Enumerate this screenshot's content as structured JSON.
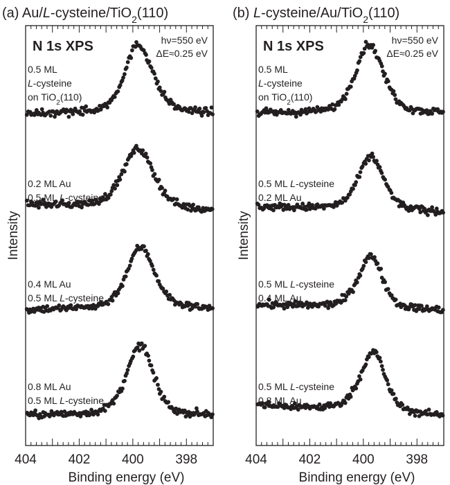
{
  "chart_data": [
    {
      "type": "scatter",
      "title_parts": [
        "(a) Au/",
        "L",
        "-cysteine/TiO",
        "2",
        "(110)"
      ],
      "heading": "N 1s XPS",
      "photon_info": [
        "hν=550 eV",
        "ΔE≈0.25 eV"
      ],
      "xlabel": "Binding energy (eV)",
      "ylabel": "Intensity",
      "x_ticks": [
        "404",
        "402",
        "400",
        "398"
      ],
      "xlim": [
        404,
        397
      ],
      "x_reversed": true,
      "series": [
        {
          "label_lines": [
            [
              {
                "t": "0.5 ML",
                "i": false
              }
            ],
            [
              {
                "t": "L",
                "i": true
              },
              {
                "t": "-cysteine",
                "i": false
              }
            ],
            [
              {
                "t": "on TiO",
                "i": false
              },
              {
                "t": "2",
                "i": false,
                "sub": true
              },
              {
                "t": "(110)",
                "i": false
              }
            ]
          ],
          "peak_x": 399.8,
          "base_left": 0.26,
          "base_right": 0.26,
          "peak_height": 1.88,
          "width_left": 0.6,
          "width_right": 0.65,
          "offset": 7.55
        },
        {
          "label_lines": [
            [
              {
                "t": "0.2 ML Au",
                "i": false
              }
            ],
            [
              {
                "t": "0.5 ML ",
                "i": false
              },
              {
                "t": "L",
                "i": true
              },
              {
                "t": "-cysteine",
                "i": false
              }
            ]
          ],
          "peak_x": 399.8,
          "base_left": 0.5,
          "base_right": 0.32,
          "peak_height": 1.72,
          "width_left": 0.7,
          "width_right": 0.7,
          "offset": 5.05
        },
        {
          "label_lines": [
            [
              {
                "t": "0.4 ML Au",
                "i": false
              }
            ],
            [
              {
                "t": "0.5 ML ",
                "i": false
              },
              {
                "t": "L",
                "i": true
              },
              {
                "t": "-cysteine",
                "i": false
              }
            ]
          ],
          "peak_x": 399.7,
          "base_left": 0.38,
          "base_right": 0.4,
          "peak_height": 1.78,
          "width_left": 0.62,
          "width_right": 0.62,
          "offset": 2.55
        },
        {
          "label_lines": [
            [
              {
                "t": "0.8 ML Au",
                "i": false
              }
            ],
            [
              {
                "t": "0.5 ML ",
                "i": false
              },
              {
                "t": "L",
                "i": true
              },
              {
                "t": "-cysteine",
                "i": false
              }
            ]
          ],
          "peak_x": 399.7,
          "base_left": 0.3,
          "base_right": 0.3,
          "peak_height": 1.92,
          "width_left": 0.62,
          "width_right": 0.55,
          "offset": 0.0
        }
      ]
    },
    {
      "type": "scatter",
      "title_parts": [
        "(b) ",
        "L",
        "-cysteine/Au/TiO",
        "2",
        "(110)"
      ],
      "heading": "N 1s XPS",
      "photon_info": [
        "hν=550 eV",
        "ΔE≈0.25 eV"
      ],
      "xlabel": "Binding energy (eV)",
      "ylabel": "Intensity",
      "x_ticks": [
        "404",
        "402",
        "400",
        "398"
      ],
      "xlim": [
        404,
        397
      ],
      "x_reversed": true,
      "series": [
        {
          "label_lines": [
            [
              {
                "t": "0.5 ML",
                "i": false
              }
            ],
            [
              {
                "t": "L",
                "i": true
              },
              {
                "t": "-cysteine",
                "i": false
              }
            ],
            [
              {
                "t": "on TiO",
                "i": false
              },
              {
                "t": "2",
                "i": false,
                "sub": true
              },
              {
                "t": "(110)",
                "i": false
              }
            ]
          ],
          "peak_x": 399.8,
          "base_left": 0.26,
          "base_right": 0.26,
          "peak_height": 1.88,
          "width_left": 0.6,
          "width_right": 0.65,
          "offset": 7.55
        },
        {
          "label_lines": [
            [
              {
                "t": "0.5 ML ",
                "i": false
              },
              {
                "t": "L",
                "i": true
              },
              {
                "t": "-cysteine",
                "i": false
              }
            ],
            [
              {
                "t": "0.2 ML Au",
                "i": false
              }
            ]
          ],
          "peak_x": 399.7,
          "base_left": 0.44,
          "base_right": 0.3,
          "peak_height": 1.55,
          "width_left": 0.58,
          "width_right": 0.55,
          "offset": 5.05
        },
        {
          "label_lines": [
            [
              {
                "t": "0.5 ML ",
                "i": false
              },
              {
                "t": "L",
                "i": true
              },
              {
                "t": "-cysteine",
                "i": false
              }
            ],
            [
              {
                "t": "0.4 ML Au",
                "i": false
              }
            ]
          ],
          "peak_x": 399.7,
          "base_left": 0.5,
          "base_right": 0.35,
          "peak_height": 1.55,
          "width_left": 0.58,
          "width_right": 0.5,
          "offset": 2.55
        },
        {
          "label_lines": [
            [
              {
                "t": "0.5 ML ",
                "i": false
              },
              {
                "t": "L",
                "i": true
              },
              {
                "t": "-cysteine",
                "i": false
              }
            ],
            [
              {
                "t": "0.8 ML Au",
                "i": false
              }
            ]
          ],
          "peak_x": 399.6,
          "base_left": 0.55,
          "base_right": 0.28,
          "peak_height": 1.72,
          "width_left": 0.62,
          "width_right": 0.5,
          "offset": 0.0
        }
      ]
    }
  ]
}
